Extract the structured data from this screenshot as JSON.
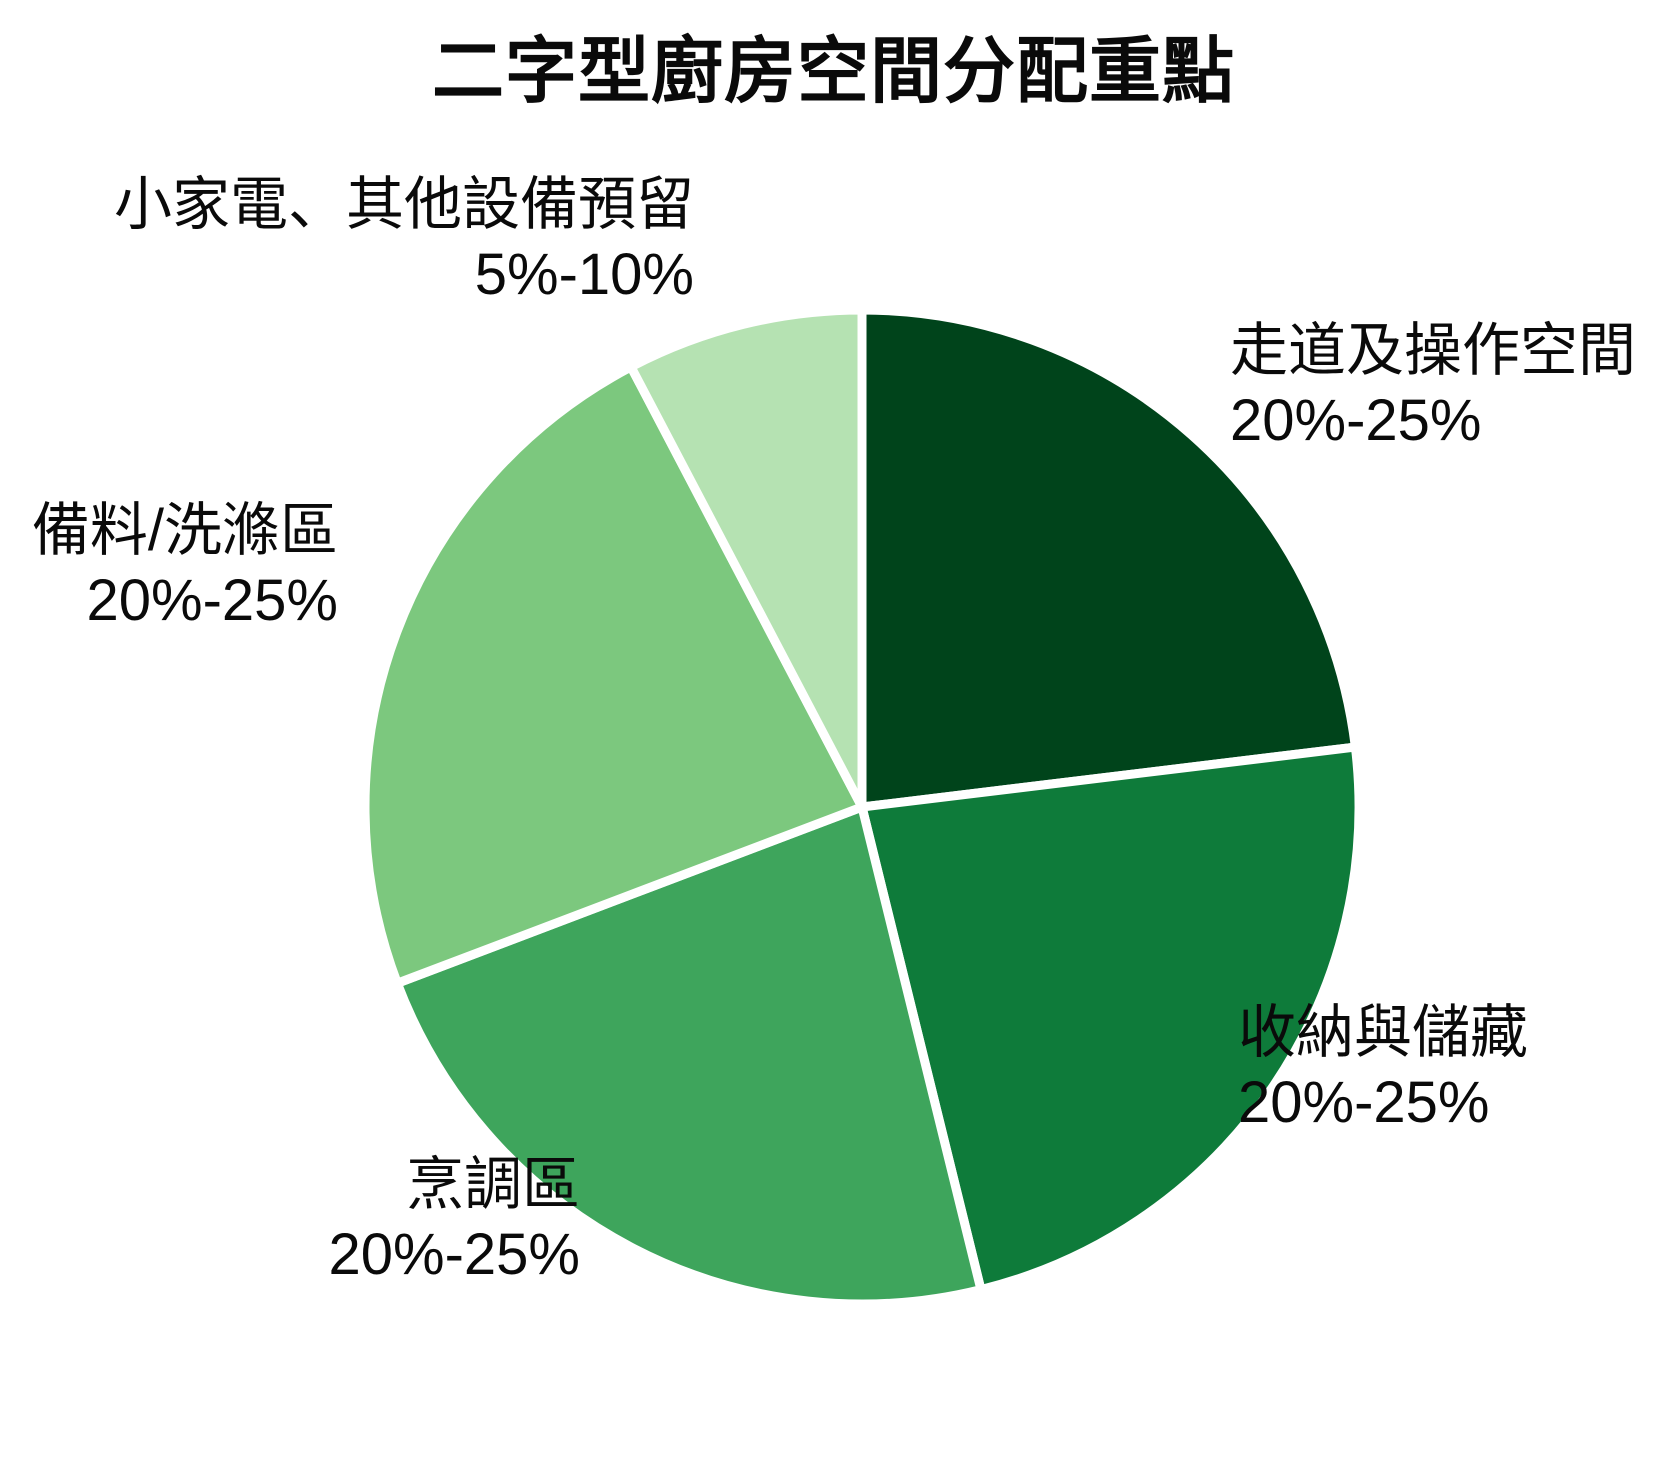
{
  "page": {
    "background": "#ffffff",
    "text_color": "#0a0a0a"
  },
  "chart_data": {
    "type": "pie",
    "title": "二字型廚房空間分配重點",
    "legend_position": "none",
    "labels_position": "outside",
    "start_angle_deg": 0,
    "direction": "clockwise",
    "separator_color": "#ffffff",
    "slices": [
      {
        "label": "走道及操作空間",
        "range_label": "20%-25%",
        "value": 22.5,
        "color": "#00441b"
      },
      {
        "label": "收納與儲藏",
        "range_label": "20%-25%",
        "value": 22.5,
        "color": "#0e7b3a"
      },
      {
        "label": "烹調區",
        "range_label": "20%-25%",
        "value": 22.5,
        "color": "#3ea55c"
      },
      {
        "label": "備料/洗滌區",
        "range_label": "20%-25%",
        "value": 22.5,
        "color": "#7cc87e"
      },
      {
        "label": "小家電、其他設備預留",
        "range_label": "5%-10%",
        "value": 7.5,
        "color": "#b5e2b2"
      }
    ]
  }
}
